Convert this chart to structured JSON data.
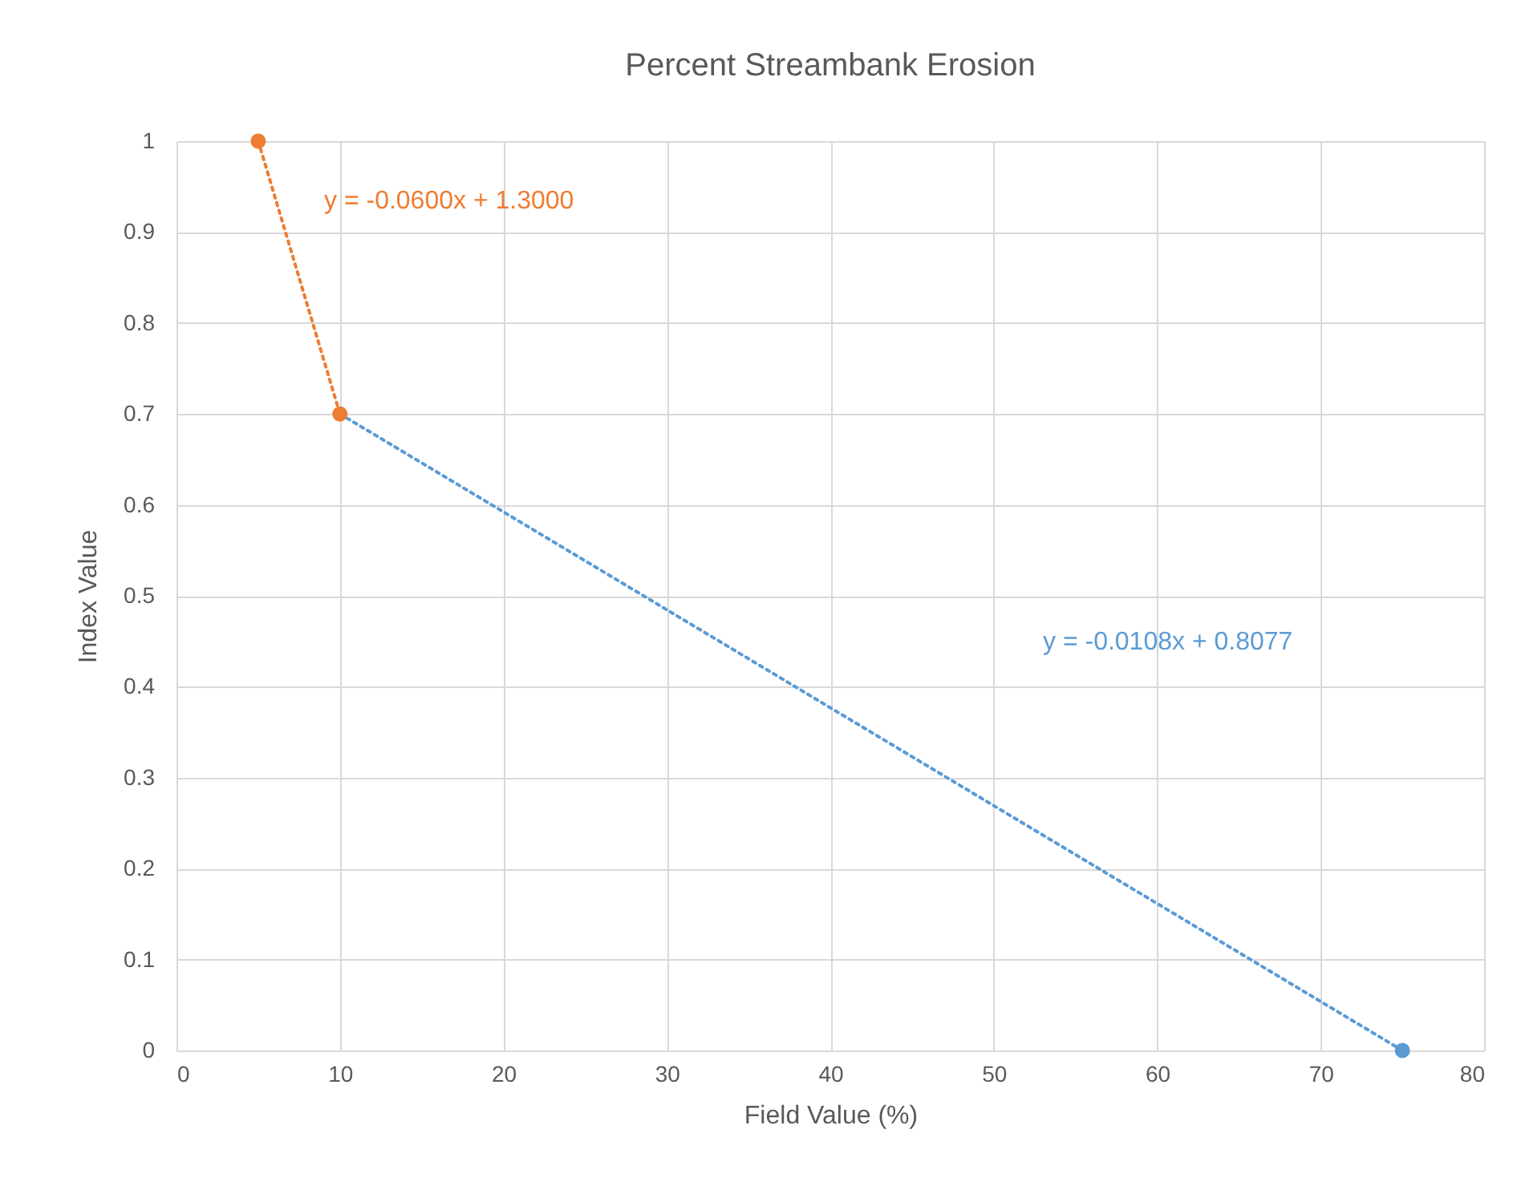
{
  "chart_data": {
    "type": "scatter",
    "title": "Percent Streambank Erosion",
    "xlabel": "Field Value (%)",
    "ylabel": "Index Value",
    "xlim": [
      0,
      80
    ],
    "xticks": [
      0,
      10,
      20,
      30,
      40,
      50,
      60,
      70,
      80
    ],
    "ylim": [
      0,
      1
    ],
    "yticks": [
      0,
      0.1,
      0.2,
      0.3,
      0.4,
      0.5,
      0.6,
      0.7,
      0.8,
      0.9,
      1
    ],
    "grid": true,
    "marker": "circle",
    "series": [
      {
        "type": "line",
        "color": "#5b9bd5",
        "line_style": "dotted",
        "marker": "none",
        "x": [
          10,
          75
        ],
        "values": [
          0.7,
          0
        ]
      },
      {
        "type": "line",
        "color": "#ed7d31",
        "line_style": "dotted",
        "marker": "none",
        "x": [
          5,
          10
        ],
        "values": [
          1,
          0.7
        ]
      },
      {
        "color": "#5b9bd5",
        "x": [
          75
        ],
        "values": [
          0
        ]
      },
      {
        "color": "#ed7d31",
        "x": [
          5,
          10
        ],
        "values": [
          1,
          0.7
        ]
      }
    ],
    "annotations": [
      "y = -0.0600x + 1.3000",
      "y = -0.0108x + 0.8077"
    ]
  }
}
